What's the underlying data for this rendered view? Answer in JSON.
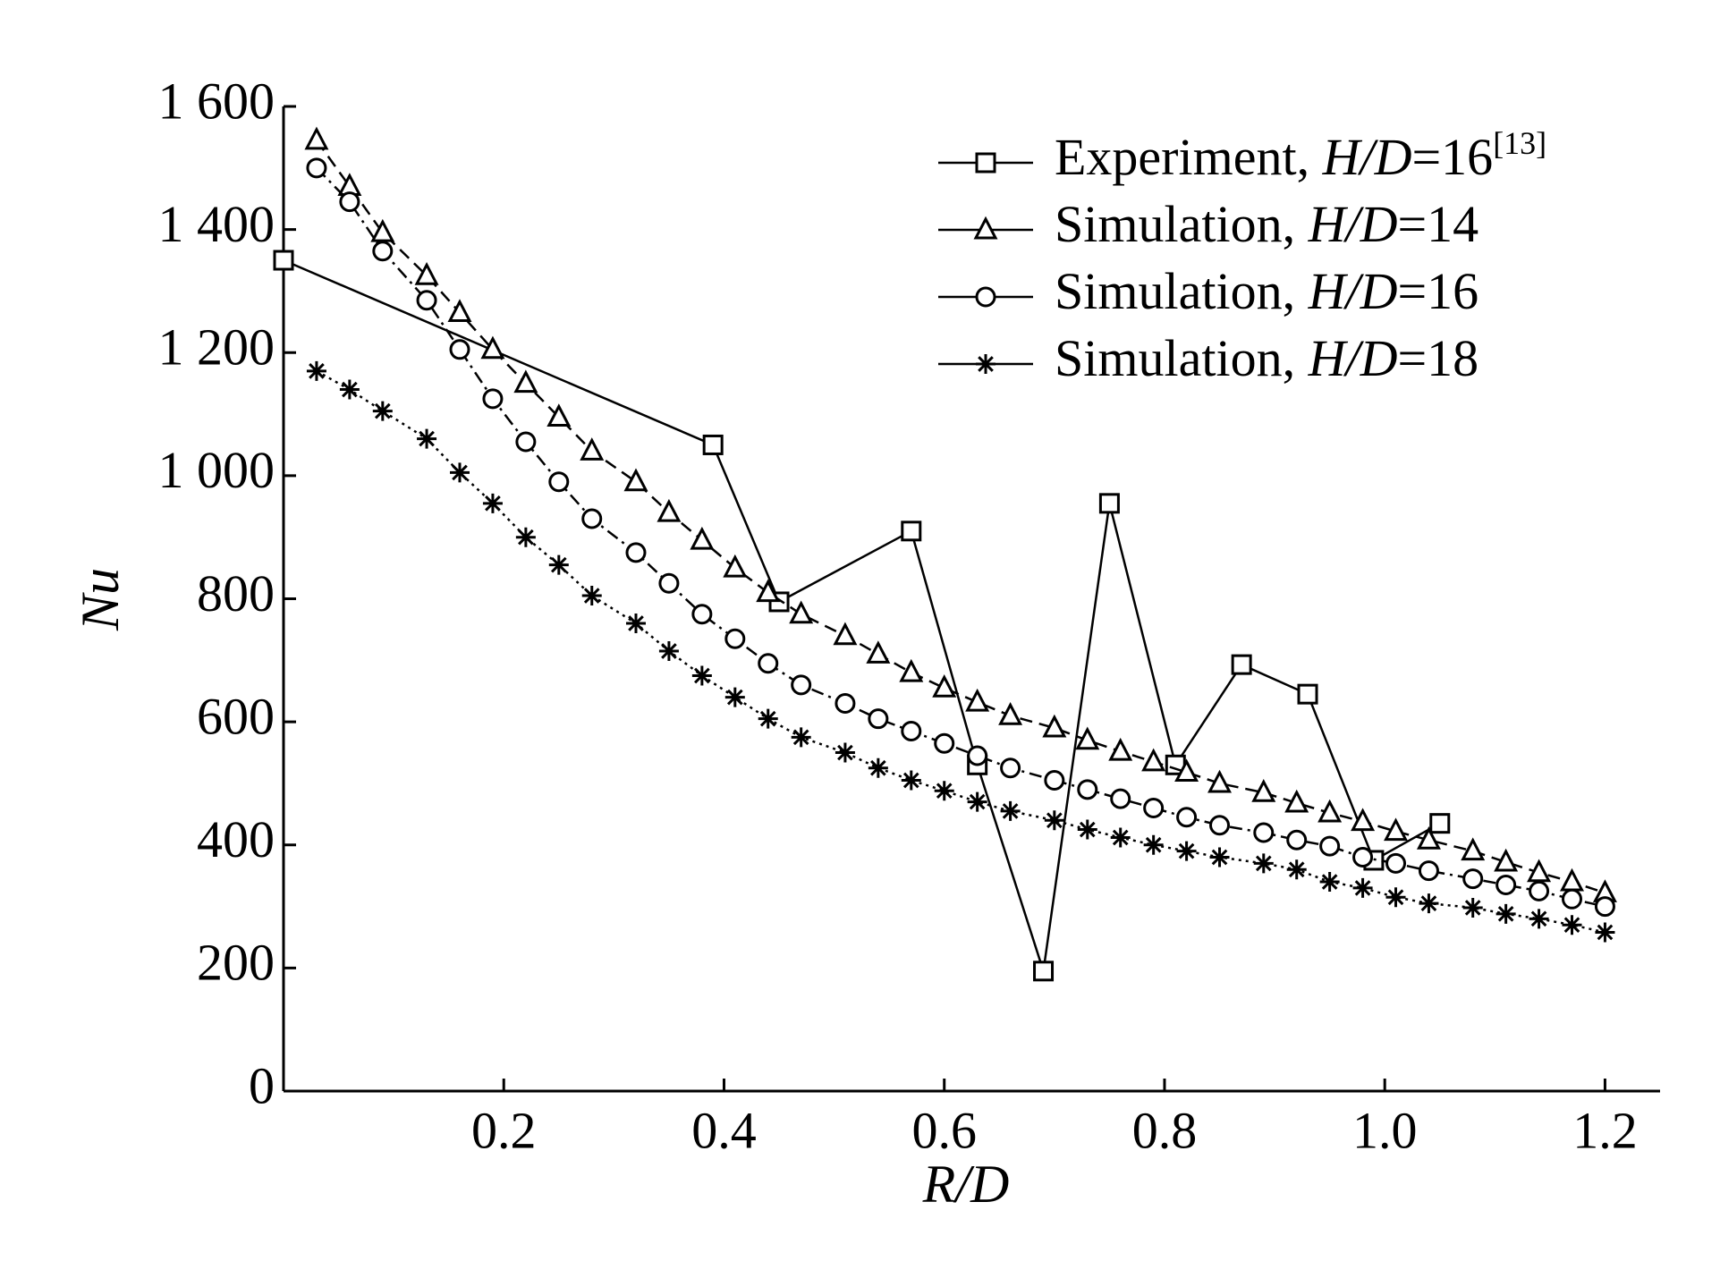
{
  "chart_data": {
    "type": "line",
    "xlabel": "R/D",
    "ylabel": "Nu",
    "xlim": [
      0,
      1.25
    ],
    "ylim": [
      0,
      1600
    ],
    "xticks": [
      0.2,
      0.4,
      0.6,
      0.8,
      {
        "value": 1,
        "label": "1.0"
      },
      1.2
    ],
    "yticks": [
      0,
      200,
      400,
      600,
      800,
      {
        "value": 1000,
        "label": "1 000"
      },
      {
        "value": 1200,
        "label": "1 200"
      },
      {
        "value": 1400,
        "label": "1 400"
      },
      {
        "value": 1600,
        "label": "1 600"
      }
    ],
    "legend": "upper right",
    "series": [
      {
        "name": "Experiment, H/D=16[13]",
        "color": "#000000",
        "marker": "square",
        "dash": "solid",
        "x": [
          0,
          0.39,
          0.45,
          0.57,
          0.63,
          0.69,
          0.75,
          0.81,
          0.87,
          0.93,
          0.99,
          1.05
        ],
        "values": [
          1350,
          1050,
          795,
          910,
          530,
          195,
          955,
          530,
          693,
          645,
          375,
          435
        ]
      },
      {
        "name": "Simulation, H/D=14",
        "color": "#000000",
        "marker": "triangle",
        "dash": "dashed",
        "x": [
          0.03,
          0.06,
          0.09,
          0.13,
          0.16,
          0.19,
          0.22,
          0.25,
          0.28,
          0.32,
          0.35,
          0.38,
          0.41,
          0.44,
          0.47,
          0.51,
          0.54,
          0.57,
          0.6,
          0.63,
          0.66,
          0.7,
          0.73,
          0.76,
          0.79,
          0.82,
          0.85,
          0.89,
          0.92,
          0.95,
          0.98,
          1.01,
          1.04,
          1.08,
          1.11,
          1.14,
          1.17,
          1.2
        ],
        "values": [
          1545,
          1470,
          1395,
          1325,
          1265,
          1205,
          1150,
          1095,
          1040,
          990,
          940,
          895,
          850,
          810,
          775,
          740,
          710,
          680,
          655,
          632,
          610,
          590,
          570,
          552,
          535,
          518,
          500,
          485,
          468,
          452,
          438,
          422,
          408,
          390,
          372,
          355,
          340,
          322
        ]
      },
      {
        "name": "Simulation, H/D=16",
        "color": "#000000",
        "marker": "circle",
        "dash": "dashdot",
        "x": [
          0.03,
          0.06,
          0.09,
          0.13,
          0.16,
          0.19,
          0.22,
          0.25,
          0.28,
          0.32,
          0.35,
          0.38,
          0.41,
          0.44,
          0.47,
          0.51,
          0.54,
          0.57,
          0.6,
          0.63,
          0.66,
          0.7,
          0.73,
          0.76,
          0.79,
          0.82,
          0.85,
          0.89,
          0.92,
          0.95,
          0.98,
          1.01,
          1.04,
          1.08,
          1.11,
          1.14,
          1.17,
          1.2
        ],
        "values": [
          1500,
          1445,
          1365,
          1285,
          1205,
          1125,
          1055,
          990,
          930,
          875,
          825,
          775,
          735,
          695,
          660,
          630,
          605,
          585,
          565,
          545,
          525,
          505,
          490,
          475,
          460,
          445,
          432,
          420,
          408,
          398,
          380,
          370,
          358,
          345,
          335,
          325,
          312,
          300
        ]
      },
      {
        "name": "Simulation, H/D=18",
        "color": "#000000",
        "marker": "star",
        "dash": "dotted",
        "x": [
          0.03,
          0.06,
          0.09,
          0.13,
          0.16,
          0.19,
          0.22,
          0.25,
          0.28,
          0.32,
          0.35,
          0.38,
          0.41,
          0.44,
          0.47,
          0.51,
          0.54,
          0.57,
          0.6,
          0.63,
          0.66,
          0.7,
          0.73,
          0.76,
          0.79,
          0.82,
          0.85,
          0.89,
          0.92,
          0.95,
          0.98,
          1.01,
          1.04,
          1.08,
          1.11,
          1.14,
          1.17,
          1.2
        ],
        "values": [
          1170,
          1140,
          1105,
          1060,
          1005,
          955,
          900,
          855,
          805,
          760,
          715,
          675,
          640,
          605,
          575,
          550,
          525,
          505,
          488,
          470,
          455,
          440,
          425,
          412,
          400,
          390,
          380,
          370,
          360,
          340,
          330,
          315,
          305,
          298,
          288,
          280,
          270,
          258
        ]
      }
    ]
  }
}
